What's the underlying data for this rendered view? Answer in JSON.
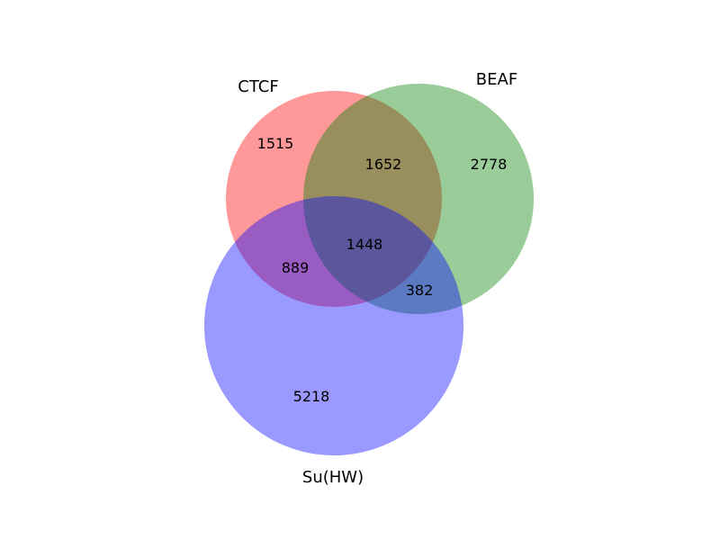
{
  "venn": {
    "sets": [
      {
        "id": "ctcf",
        "label": "CTCF",
        "color": "#ff0000"
      },
      {
        "id": "beaf",
        "label": "BEAF",
        "color": "#008000"
      },
      {
        "id": "suhw",
        "label": "Su(HW)",
        "color": "#0000ff"
      }
    ],
    "regions": {
      "ctcf_only": "1515",
      "beaf_only": "2778",
      "suhw_only": "5218",
      "ctcf_beaf": "1652",
      "ctcf_suhw": "889",
      "beaf_suhw": "382",
      "all_three": "1448"
    }
  }
}
